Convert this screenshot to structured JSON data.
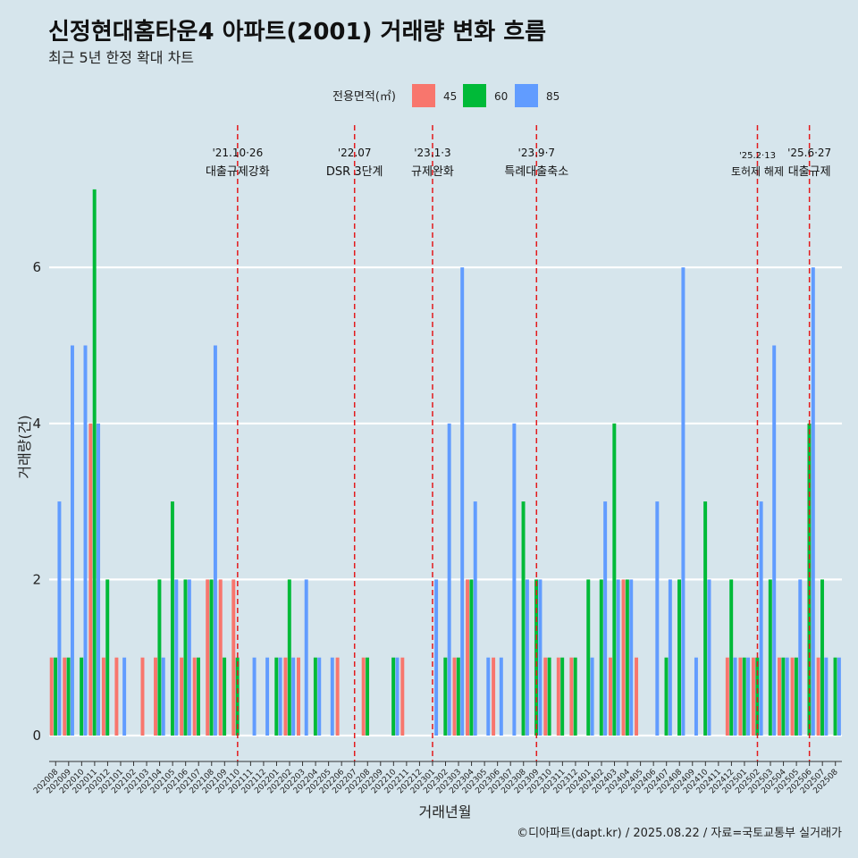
{
  "colors": {
    "background": "#d6e5ec",
    "grid": "#ffffff",
    "event_line": "#e31a1c",
    "s45": "#f8766d",
    "s60": "#00ba38",
    "s85": "#619cff"
  },
  "chart_data": {
    "type": "bar",
    "title": "신정현대홈타운4 아파트(2001) 거래량 변화 흐름",
    "subtitle": "최근 5년 한정 확대 차트",
    "xlabel": "거래년월",
    "ylabel": "거래량(건)",
    "ylim": [
      -0.3,
      7.4
    ],
    "yticks": [
      0,
      2,
      4,
      6
    ],
    "grid": true,
    "legend": {
      "title": "전용면적(㎡)",
      "position": "top",
      "entries": [
        "45",
        "60",
        "85"
      ]
    },
    "caption": "©디아파트(dapt.kr) / 2025.08.22 / 자료=국토교통부 실거래가",
    "categories": [
      "202008",
      "202009",
      "202010",
      "202011",
      "202012",
      "202101",
      "202102",
      "202103",
      "202104",
      "202105",
      "202106",
      "202107",
      "202108",
      "202109",
      "202110",
      "202111",
      "202112",
      "202201",
      "202202",
      "202203",
      "202204",
      "202205",
      "202206",
      "202207",
      "202208",
      "202209",
      "202210",
      "202211",
      "202212",
      "202301",
      "202302",
      "202303",
      "202304",
      "202305",
      "202306",
      "202307",
      "202308",
      "202309",
      "202310",
      "202311",
      "202312",
      "202401",
      "202402",
      "202403",
      "202404",
      "202405",
      "202406",
      "202407",
      "202408",
      "202409",
      "202410",
      "202411",
      "202412",
      "202501",
      "202502",
      "202503",
      "202504",
      "202505",
      "202506",
      "202507",
      "202508"
    ],
    "series": [
      {
        "name": "45",
        "values": [
          1,
          1,
          0,
          4,
          1,
          1,
          0,
          1,
          1,
          0,
          1,
          1,
          2,
          2,
          2,
          0,
          0,
          0,
          1,
          1,
          0,
          0,
          1,
          0,
          1,
          0,
          0,
          1,
          0,
          0,
          0,
          1,
          2,
          0,
          1,
          0,
          0,
          0,
          1,
          1,
          1,
          0,
          0,
          1,
          2,
          1,
          0,
          0,
          0,
          0,
          0,
          0,
          1,
          1,
          1,
          0,
          1,
          1,
          0,
          1,
          0
        ]
      },
      {
        "name": "60",
        "values": [
          1,
          1,
          1,
          7,
          2,
          0,
          0,
          0,
          2,
          3,
          2,
          1,
          2,
          1,
          1,
          0,
          0,
          1,
          2,
          0,
          1,
          0,
          0,
          0,
          1,
          0,
          1,
          0,
          0,
          0,
          1,
          1,
          2,
          0,
          0,
          0,
          3,
          2,
          1,
          1,
          1,
          2,
          2,
          4,
          2,
          0,
          0,
          1,
          2,
          0,
          3,
          0,
          2,
          1,
          1,
          2,
          1,
          1,
          4,
          2,
          1
        ]
      },
      {
        "name": "85",
        "values": [
          3,
          5,
          5,
          4,
          0,
          1,
          0,
          0,
          1,
          2,
          2,
          0,
          5,
          0,
          0,
          1,
          1,
          1,
          1,
          2,
          1,
          1,
          0,
          0,
          0,
          0,
          1,
          0,
          0,
          2,
          4,
          6,
          3,
          1,
          1,
          4,
          2,
          2,
          0,
          0,
          0,
          1,
          3,
          2,
          2,
          0,
          3,
          2,
          6,
          1,
          2,
          0,
          1,
          1,
          3,
          5,
          1,
          2,
          6,
          1,
          1
        ]
      }
    ],
    "events": [
      {
        "date": "'21.10·26",
        "label": "대출규제강화",
        "at": "202110",
        "small": false
      },
      {
        "date": "'22.07",
        "label": "DSR 3단계",
        "at": "202207",
        "small": false
      },
      {
        "date": "'23.1·3",
        "label": "규제완화",
        "at": "202301",
        "small": false
      },
      {
        "date": "'23.9·7",
        "label": "특례대출축소",
        "at": "202309",
        "small": false
      },
      {
        "date": "'25.2·13",
        "label": "토허제 해제",
        "at": "202502",
        "small": true
      },
      {
        "date": "'25.6·27",
        "label": "대출규제",
        "at": "202506",
        "small": false
      }
    ]
  }
}
